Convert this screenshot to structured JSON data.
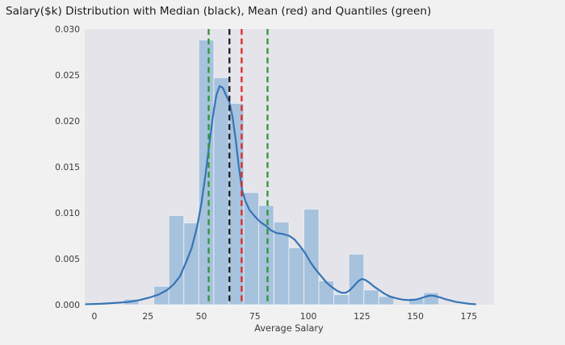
{
  "title": "Salary($k) Distribution with Median (black), Mean (red) and Quantiles (green)",
  "chart_data": {
    "type": "bar",
    "subtype": "histogram_with_kde",
    "title": "Salary($k) Distribution with Median (black), Mean (red) and Quantiles (green)",
    "xlabel": "Average Salary",
    "ylabel": "",
    "xlim": [
      -4.5,
      186.7
    ],
    "ylim": [
      0,
      0.03
    ],
    "grid": false,
    "legend": "none",
    "x_ticks": {
      "values": [
        0,
        25,
        50,
        75,
        100,
        125,
        150,
        175
      ],
      "labels": [
        "0",
        "25",
        "50",
        "75",
        "100",
        "125",
        "150",
        "175"
      ]
    },
    "y_ticks": {
      "values": [
        0.0,
        0.005,
        0.01,
        0.015,
        0.02,
        0.025,
        0.03
      ],
      "labels": [
        "0.000",
        "0.005",
        "0.010",
        "0.015",
        "0.020",
        "0.025",
        "0.030"
      ]
    },
    "histogram": {
      "bin_width": 7.0,
      "bins": [
        {
          "start": 13.8,
          "density": 0.0006
        },
        {
          "start": 27.8,
          "density": 0.002
        },
        {
          "start": 34.8,
          "density": 0.0097
        },
        {
          "start": 41.8,
          "density": 0.0089
        },
        {
          "start": 48.8,
          "density": 0.0288
        },
        {
          "start": 55.8,
          "density": 0.0247
        },
        {
          "start": 62.8,
          "density": 0.0219
        },
        {
          "start": 69.8,
          "density": 0.0122
        },
        {
          "start": 76.8,
          "density": 0.0108
        },
        {
          "start": 83.9,
          "density": 0.009
        },
        {
          "start": 90.9,
          "density": 0.0062
        },
        {
          "start": 97.9,
          "density": 0.0104
        },
        {
          "start": 104.9,
          "density": 0.0026
        },
        {
          "start": 111.9,
          "density": 0.0011
        },
        {
          "start": 118.9,
          "density": 0.0055
        },
        {
          "start": 125.9,
          "density": 0.0016
        },
        {
          "start": 132.9,
          "density": 0.0009
        },
        {
          "start": 146.9,
          "density": 0.0007
        },
        {
          "start": 153.9,
          "density": 0.0013
        }
      ]
    },
    "kde": {
      "points": [
        [
          -4,
          5e-05
        ],
        [
          3,
          0.0001
        ],
        [
          10,
          0.0002
        ],
        [
          16,
          0.0003
        ],
        [
          21,
          0.0005
        ],
        [
          26,
          0.0008
        ],
        [
          30,
          0.0011
        ],
        [
          34,
          0.0016
        ],
        [
          37,
          0.0022
        ],
        [
          40,
          0.0031
        ],
        [
          43,
          0.0047
        ],
        [
          45.5,
          0.0062
        ],
        [
          48,
          0.0085
        ],
        [
          50,
          0.011
        ],
        [
          52,
          0.0143
        ],
        [
          54,
          0.018
        ],
        [
          55.5,
          0.0207
        ],
        [
          57,
          0.0228
        ],
        [
          58.5,
          0.0238
        ],
        [
          60,
          0.0236
        ],
        [
          61.5,
          0.0228
        ],
        [
          63,
          0.0221
        ],
        [
          64.5,
          0.0205
        ],
        [
          66,
          0.018
        ],
        [
          67.5,
          0.015
        ],
        [
          69,
          0.0125
        ],
        [
          70.5,
          0.0113
        ],
        [
          72.5,
          0.0103
        ],
        [
          75,
          0.0096
        ],
        [
          77.5,
          0.009
        ],
        [
          80,
          0.0086
        ],
        [
          82.5,
          0.0081
        ],
        [
          85,
          0.0078
        ],
        [
          88,
          0.0077
        ],
        [
          91,
          0.0075
        ],
        [
          93.5,
          0.0071
        ],
        [
          96,
          0.0064
        ],
        [
          98.5,
          0.0056
        ],
        [
          101,
          0.0046
        ],
        [
          103.5,
          0.0038
        ],
        [
          106,
          0.0031
        ],
        [
          108.5,
          0.0024
        ],
        [
          111,
          0.0019
        ],
        [
          113.5,
          0.0015
        ],
        [
          115.5,
          0.0013
        ],
        [
          117.5,
          0.0013
        ],
        [
          119.5,
          0.0016
        ],
        [
          121.5,
          0.0021
        ],
        [
          123.5,
          0.0026
        ],
        [
          125,
          0.0028
        ],
        [
          126.5,
          0.0027
        ],
        [
          128.5,
          0.0024
        ],
        [
          130.5,
          0.002
        ],
        [
          133,
          0.0016
        ],
        [
          135.5,
          0.0012
        ],
        [
          138,
          0.0009
        ],
        [
          141,
          0.0007
        ],
        [
          144,
          0.00055
        ],
        [
          147,
          0.0005
        ],
        [
          150,
          0.00055
        ],
        [
          152.5,
          0.0007
        ],
        [
          155,
          0.0009
        ],
        [
          157,
          0.001
        ],
        [
          159,
          0.00095
        ],
        [
          161.5,
          0.0008
        ],
        [
          164,
          0.0006
        ],
        [
          166.5,
          0.00045
        ],
        [
          169,
          0.0003
        ],
        [
          172,
          0.0002
        ],
        [
          175,
          0.0001
        ],
        [
          178,
          5e-05
        ]
      ]
    },
    "reference_lines": [
      {
        "name": "quantile-low",
        "x": 53.4,
        "color": "#2e9632",
        "style": "dashed"
      },
      {
        "name": "median",
        "x": 63.1,
        "color": "#1c1c1c",
        "style": "dashed"
      },
      {
        "name": "mean",
        "x": 68.8,
        "color": "#dd2a26",
        "style": "dashed"
      },
      {
        "name": "quantile-high",
        "x": 80.9,
        "color": "#2e9632",
        "style": "dashed"
      }
    ],
    "statistics": {
      "median": 63,
      "mean": 69,
      "quantile_low": 53,
      "quantile_high": 81
    }
  },
  "colors": {
    "figure_bg": "#f1f1f1",
    "plot_bg": "#e4e4ea",
    "bar_fill": "#a7c2dd",
    "bar_edge": "#ffffff",
    "kde_line": "#3674b5",
    "green_line": "#2e9632",
    "black_line": "#1c1c1c",
    "red_line": "#dd2a26",
    "tick_color": "#3a3a3a",
    "title_color": "#1c1c1c"
  }
}
